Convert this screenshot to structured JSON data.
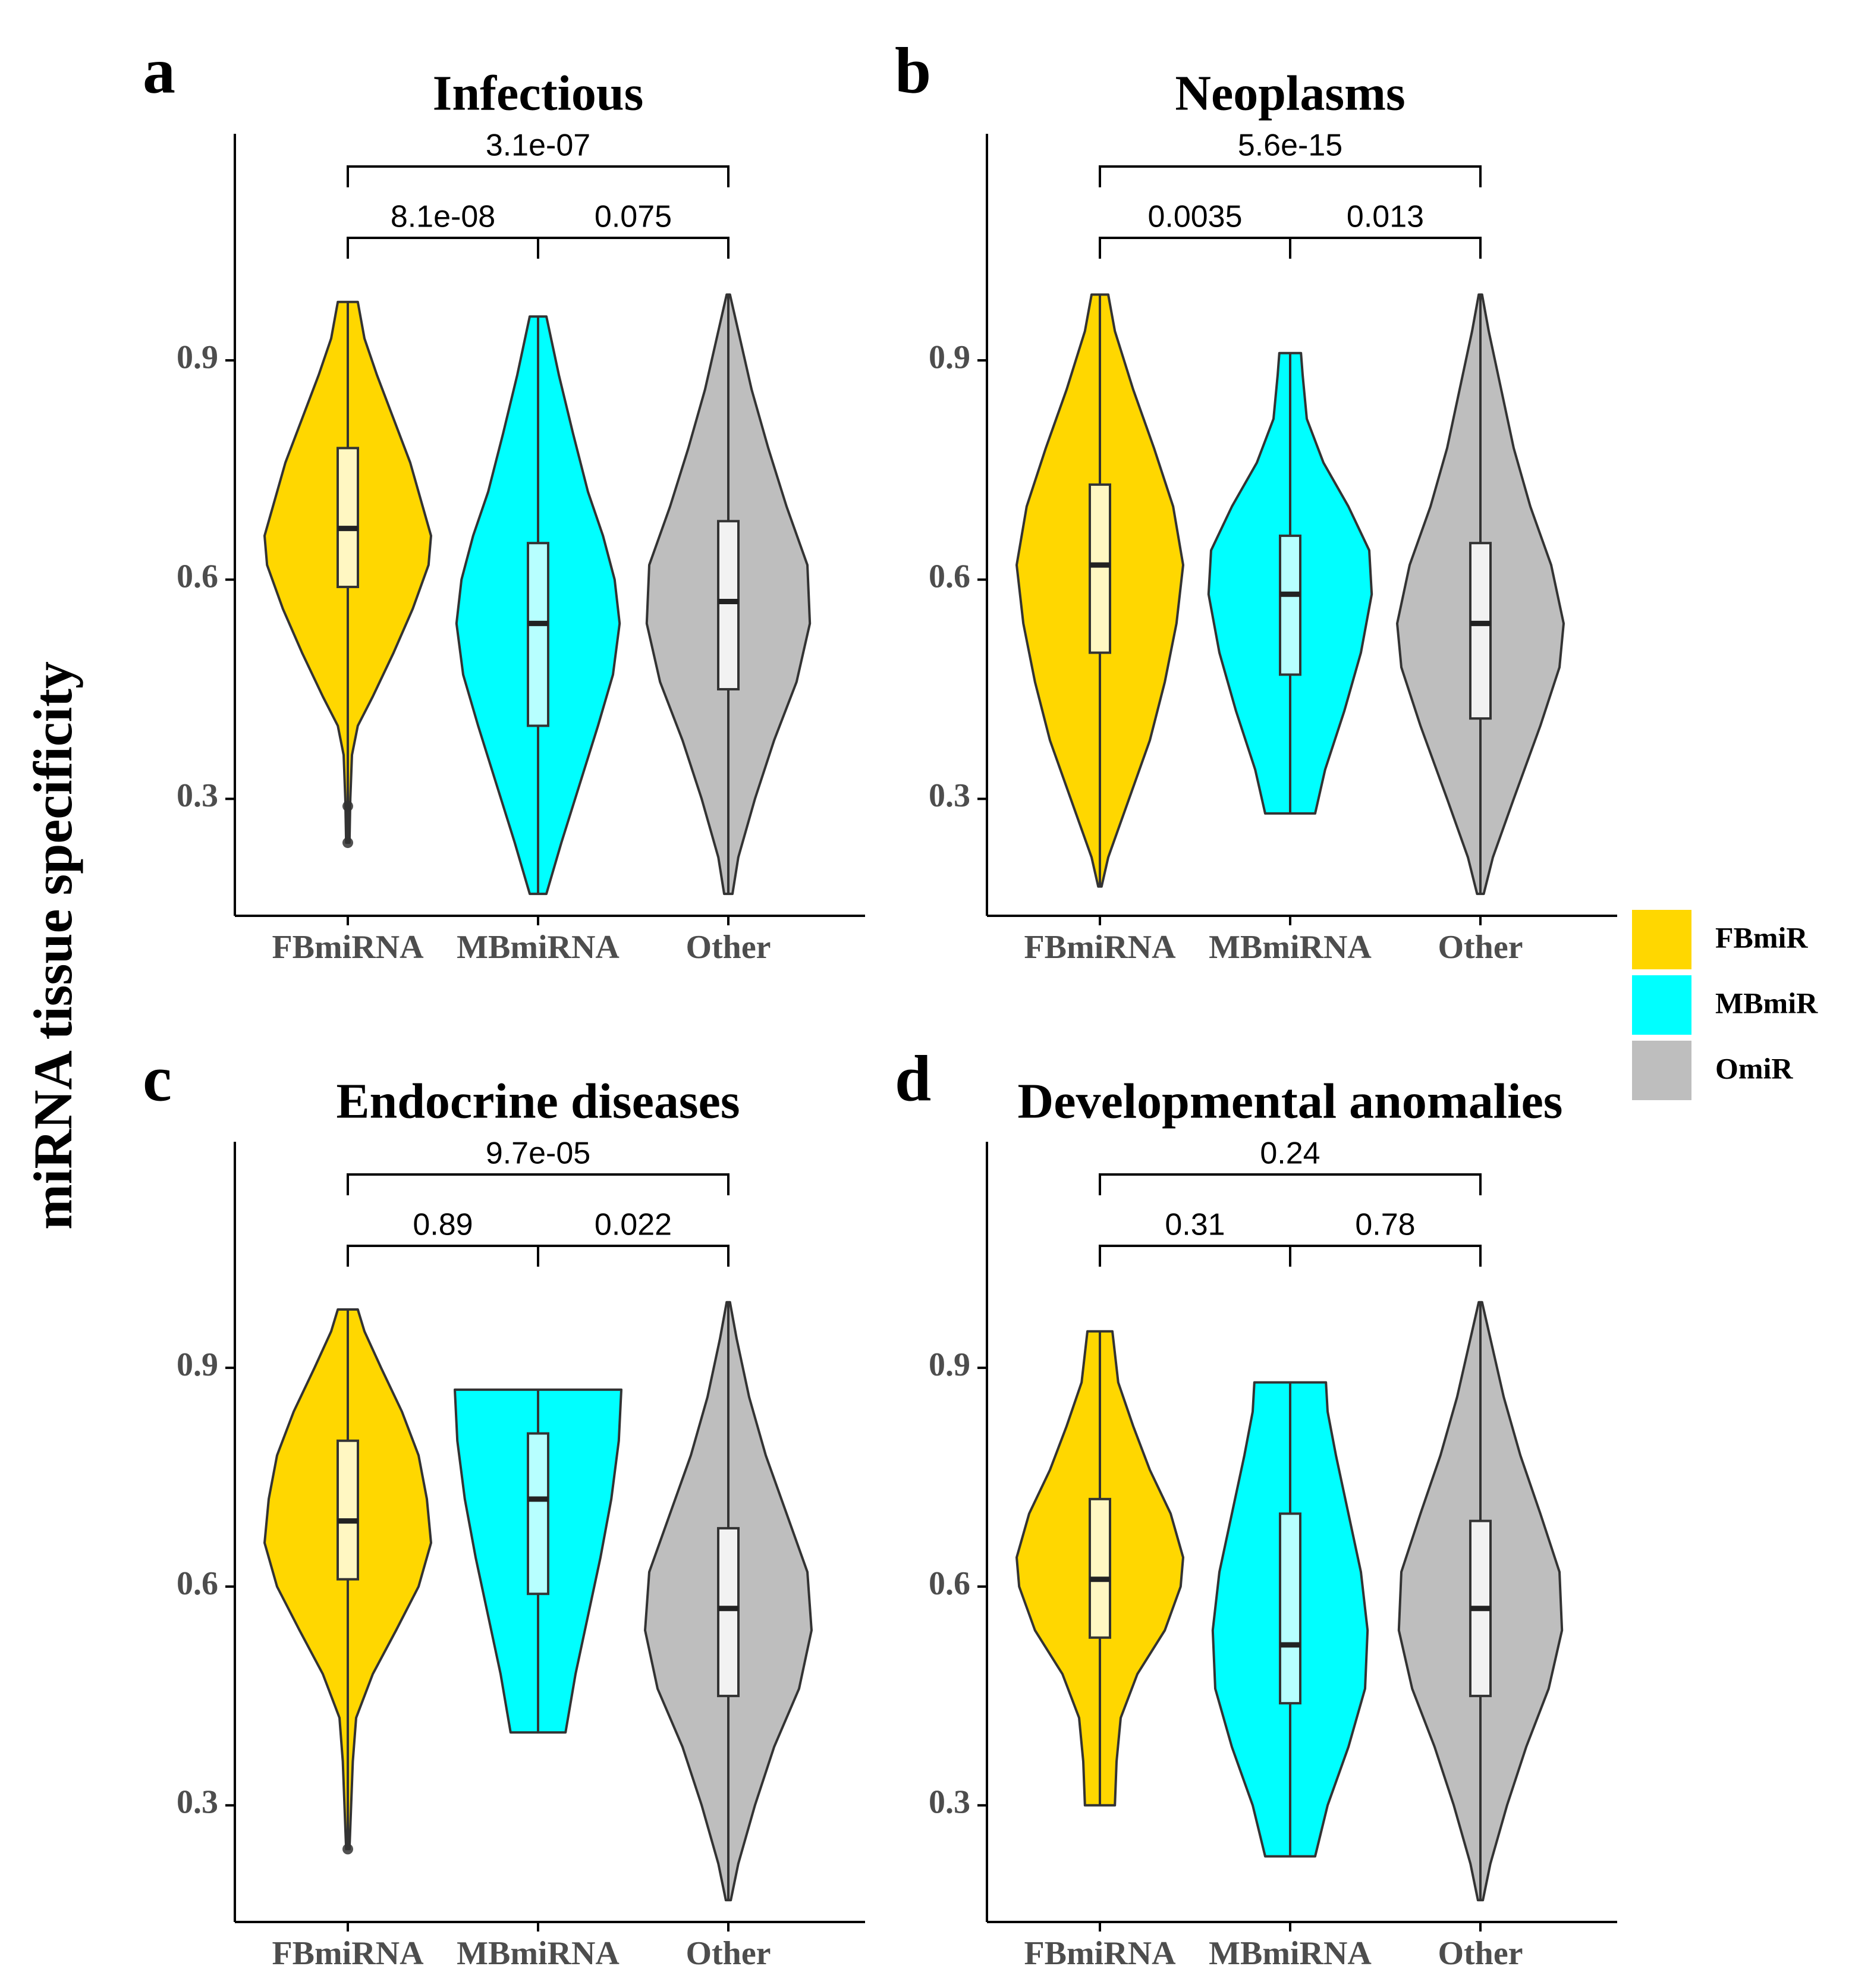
{
  "y_axis_label": "miRNA tissue specificity",
  "legend": [
    {
      "label": "FBmiR",
      "color": "#FFD700"
    },
    {
      "label": "MBmiR",
      "color": "#00FFFF"
    },
    {
      "label": "OmiR",
      "color": "#BEBEBE"
    }
  ],
  "chart_data": [
    {
      "type": "violin",
      "panel_letter": "a",
      "title": "Infectious",
      "categories": [
        "FBmiRNA",
        "MBmiRNA",
        "Other"
      ],
      "y_ticks": [
        "0.3",
        "0.6",
        "0.9"
      ],
      "ylim": [
        0.14,
        1.21
      ],
      "comparisons": [
        {
          "groups": [
            "FBmiRNA",
            "MBmiRNA"
          ],
          "p": "8.1e-08"
        },
        {
          "groups": [
            "MBmiRNA",
            "Other"
          ],
          "p": "0.075"
        },
        {
          "groups": [
            "FBmiRNA",
            "Other"
          ],
          "p": "3.1e-07"
        }
      ],
      "groups": [
        {
          "name": "FBmiRNA",
          "min": 0.24,
          "q1": 0.59,
          "median": 0.67,
          "q3": 0.78,
          "max": 0.98,
          "outliers": [
            0.24,
            0.29
          ],
          "density": [
            [
              0.24,
              0.02
            ],
            [
              0.3,
              0.03
            ],
            [
              0.36,
              0.05
            ],
            [
              0.4,
              0.12
            ],
            [
              0.44,
              0.3
            ],
            [
              0.5,
              0.55
            ],
            [
              0.56,
              0.78
            ],
            [
              0.62,
              0.97
            ],
            [
              0.66,
              1.0
            ],
            [
              0.7,
              0.9
            ],
            [
              0.76,
              0.75
            ],
            [
              0.82,
              0.55
            ],
            [
              0.88,
              0.35
            ],
            [
              0.93,
              0.2
            ],
            [
              0.98,
              0.12
            ]
          ]
        },
        {
          "name": "MBmiRNA",
          "min": 0.17,
          "q1": 0.4,
          "median": 0.54,
          "q3": 0.65,
          "max": 0.96,
          "outliers": [],
          "density": [
            [
              0.17,
              0.1
            ],
            [
              0.24,
              0.28
            ],
            [
              0.32,
              0.5
            ],
            [
              0.4,
              0.72
            ],
            [
              0.47,
              0.9
            ],
            [
              0.54,
              0.98
            ],
            [
              0.6,
              0.92
            ],
            [
              0.66,
              0.78
            ],
            [
              0.72,
              0.6
            ],
            [
              0.8,
              0.42
            ],
            [
              0.88,
              0.25
            ],
            [
              0.96,
              0.1
            ]
          ]
        },
        {
          "name": "Other",
          "min": 0.17,
          "q1": 0.45,
          "median": 0.57,
          "q3": 0.68,
          "max": 0.99,
          "outliers": [],
          "density": [
            [
              0.17,
              0.05
            ],
            [
              0.22,
              0.12
            ],
            [
              0.3,
              0.32
            ],
            [
              0.38,
              0.55
            ],
            [
              0.46,
              0.82
            ],
            [
              0.54,
              0.98
            ],
            [
              0.62,
              0.95
            ],
            [
              0.7,
              0.7
            ],
            [
              0.78,
              0.48
            ],
            [
              0.86,
              0.28
            ],
            [
              0.94,
              0.12
            ],
            [
              0.99,
              0.02
            ]
          ]
        }
      ]
    },
    {
      "type": "violin",
      "panel_letter": "b",
      "title": "Neoplasms",
      "categories": [
        "FBmiRNA",
        "MBmiRNA",
        "Other"
      ],
      "y_ticks": [
        "0.3",
        "0.6",
        "0.9"
      ],
      "ylim": [
        0.14,
        1.21
      ],
      "comparisons": [
        {
          "groups": [
            "FBmiRNA",
            "MBmiRNA"
          ],
          "p": "0.0035"
        },
        {
          "groups": [
            "MBmiRNA",
            "Other"
          ],
          "p": "0.013"
        },
        {
          "groups": [
            "FBmiRNA",
            "Other"
          ],
          "p": "5.6e-15"
        }
      ],
      "groups": [
        {
          "name": "FBmiRNA",
          "min": 0.18,
          "q1": 0.5,
          "median": 0.62,
          "q3": 0.73,
          "max": 0.99,
          "outliers": [],
          "density": [
            [
              0.18,
              0.02
            ],
            [
              0.22,
              0.1
            ],
            [
              0.3,
              0.35
            ],
            [
              0.38,
              0.6
            ],
            [
              0.46,
              0.78
            ],
            [
              0.54,
              0.92
            ],
            [
              0.62,
              1.0
            ],
            [
              0.7,
              0.88
            ],
            [
              0.78,
              0.65
            ],
            [
              0.86,
              0.4
            ],
            [
              0.94,
              0.18
            ],
            [
              0.99,
              0.1
            ]
          ]
        },
        {
          "name": "MBmiRNA",
          "min": 0.28,
          "q1": 0.47,
          "median": 0.58,
          "q3": 0.66,
          "max": 0.91,
          "outliers": [],
          "density": [
            [
              0.28,
              0.3
            ],
            [
              0.34,
              0.42
            ],
            [
              0.42,
              0.65
            ],
            [
              0.5,
              0.85
            ],
            [
              0.58,
              0.98
            ],
            [
              0.64,
              0.95
            ],
            [
              0.7,
              0.7
            ],
            [
              0.76,
              0.4
            ],
            [
              0.82,
              0.2
            ],
            [
              0.88,
              0.15
            ],
            [
              0.91,
              0.13
            ]
          ]
        },
        {
          "name": "Other",
          "min": 0.17,
          "q1": 0.41,
          "median": 0.54,
          "q3": 0.65,
          "max": 0.99,
          "outliers": [],
          "density": [
            [
              0.17,
              0.04
            ],
            [
              0.22,
              0.15
            ],
            [
              0.3,
              0.4
            ],
            [
              0.4,
              0.72
            ],
            [
              0.48,
              0.95
            ],
            [
              0.54,
              1.0
            ],
            [
              0.62,
              0.85
            ],
            [
              0.7,
              0.6
            ],
            [
              0.78,
              0.4
            ],
            [
              0.86,
              0.25
            ],
            [
              0.94,
              0.1
            ],
            [
              0.99,
              0.02
            ]
          ]
        }
      ]
    },
    {
      "type": "violin",
      "panel_letter": "c",
      "title": "Endocrine diseases",
      "categories": [
        "FBmiRNA",
        "MBmiRNA",
        "Other"
      ],
      "y_ticks": [
        "0.3",
        "0.6",
        "0.9"
      ],
      "ylim": [
        0.14,
        1.21
      ],
      "comparisons": [
        {
          "groups": [
            "FBmiRNA",
            "MBmiRNA"
          ],
          "p": "0.89"
        },
        {
          "groups": [
            "MBmiRNA",
            "Other"
          ],
          "p": "0.022"
        },
        {
          "groups": [
            "FBmiRNA",
            "Other"
          ],
          "p": "9.7e-05"
        }
      ],
      "groups": [
        {
          "name": "FBmiRNA",
          "min": 0.24,
          "q1": 0.61,
          "median": 0.69,
          "q3": 0.8,
          "max": 0.98,
          "outliers": [
            0.24
          ],
          "density": [
            [
              0.24,
              0.02
            ],
            [
              0.3,
              0.04
            ],
            [
              0.36,
              0.06
            ],
            [
              0.42,
              0.1
            ],
            [
              0.48,
              0.3
            ],
            [
              0.54,
              0.58
            ],
            [
              0.6,
              0.85
            ],
            [
              0.66,
              1.0
            ],
            [
              0.72,
              0.95
            ],
            [
              0.78,
              0.85
            ],
            [
              0.84,
              0.65
            ],
            [
              0.9,
              0.4
            ],
            [
              0.95,
              0.2
            ],
            [
              0.98,
              0.12
            ]
          ]
        },
        {
          "name": "MBmiRNA",
          "min": 0.4,
          "q1": 0.59,
          "median": 0.72,
          "q3": 0.81,
          "max": 0.87,
          "outliers": [],
          "density": [
            [
              0.4,
              0.33
            ],
            [
              0.48,
              0.45
            ],
            [
              0.56,
              0.6
            ],
            [
              0.64,
              0.75
            ],
            [
              0.72,
              0.88
            ],
            [
              0.8,
              0.97
            ],
            [
              0.87,
              1.0
            ]
          ]
        },
        {
          "name": "Other",
          "min": 0.17,
          "q1": 0.45,
          "median": 0.57,
          "q3": 0.68,
          "max": 0.99,
          "outliers": [],
          "density": [
            [
              0.17,
              0.03
            ],
            [
              0.22,
              0.12
            ],
            [
              0.3,
              0.32
            ],
            [
              0.38,
              0.55
            ],
            [
              0.46,
              0.85
            ],
            [
              0.54,
              1.0
            ],
            [
              0.62,
              0.95
            ],
            [
              0.7,
              0.7
            ],
            [
              0.78,
              0.45
            ],
            [
              0.86,
              0.25
            ],
            [
              0.94,
              0.1
            ],
            [
              0.99,
              0.02
            ]
          ]
        }
      ]
    },
    {
      "type": "violin",
      "panel_letter": "d",
      "title": "Developmental anomalies",
      "categories": [
        "FBmiRNA",
        "MBmiRNA",
        "Other"
      ],
      "y_ticks": [
        "0.3",
        "0.6",
        "0.9"
      ],
      "ylim": [
        0.14,
        1.21
      ],
      "comparisons": [
        {
          "groups": [
            "FBmiRNA",
            "MBmiRNA"
          ],
          "p": "0.31"
        },
        {
          "groups": [
            "MBmiRNA",
            "Other"
          ],
          "p": "0.78"
        },
        {
          "groups": [
            "FBmiRNA",
            "Other"
          ],
          "p": "0.24"
        }
      ],
      "groups": [
        {
          "name": "FBmiRNA",
          "min": 0.3,
          "q1": 0.53,
          "median": 0.61,
          "q3": 0.72,
          "max": 0.95,
          "outliers": [],
          "density": [
            [
              0.3,
              0.18
            ],
            [
              0.36,
              0.2
            ],
            [
              0.42,
              0.25
            ],
            [
              0.48,
              0.45
            ],
            [
              0.54,
              0.78
            ],
            [
              0.6,
              0.97
            ],
            [
              0.64,
              1.0
            ],
            [
              0.7,
              0.85
            ],
            [
              0.76,
              0.6
            ],
            [
              0.82,
              0.4
            ],
            [
              0.88,
              0.22
            ],
            [
              0.95,
              0.15
            ]
          ]
        },
        {
          "name": "MBmiRNA",
          "min": 0.23,
          "q1": 0.44,
          "median": 0.52,
          "q3": 0.7,
          "max": 0.88,
          "outliers": [],
          "density": [
            [
              0.23,
              0.3
            ],
            [
              0.3,
              0.45
            ],
            [
              0.38,
              0.7
            ],
            [
              0.46,
              0.9
            ],
            [
              0.54,
              0.93
            ],
            [
              0.62,
              0.85
            ],
            [
              0.7,
              0.7
            ],
            [
              0.78,
              0.55
            ],
            [
              0.84,
              0.45
            ],
            [
              0.88,
              0.43
            ]
          ]
        },
        {
          "name": "Other",
          "min": 0.17,
          "q1": 0.45,
          "median": 0.57,
          "q3": 0.69,
          "max": 0.99,
          "outliers": [],
          "density": [
            [
              0.17,
              0.03
            ],
            [
              0.22,
              0.12
            ],
            [
              0.3,
              0.32
            ],
            [
              0.38,
              0.55
            ],
            [
              0.46,
              0.82
            ],
            [
              0.54,
              0.98
            ],
            [
              0.62,
              0.95
            ],
            [
              0.7,
              0.72
            ],
            [
              0.78,
              0.48
            ],
            [
              0.86,
              0.28
            ],
            [
              0.94,
              0.12
            ],
            [
              0.99,
              0.02
            ]
          ]
        }
      ]
    }
  ]
}
